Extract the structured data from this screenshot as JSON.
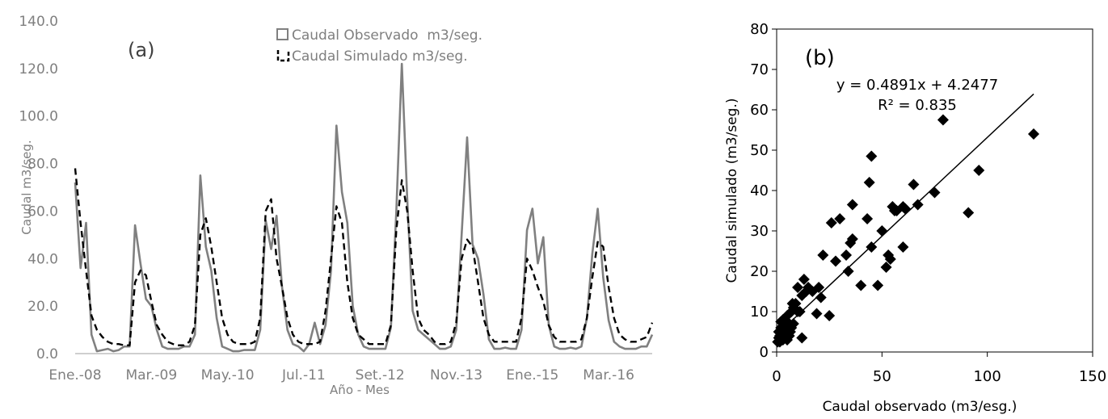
{
  "chart_data": [
    {
      "type": "line",
      "panel_label": "(a)",
      "xlabel": "Año - Mes",
      "ylabel": "Caudal m3/seg.",
      "ylim": [
        0,
        140
      ],
      "yticks": [
        "0.0",
        "20.0",
        "40.0",
        "60.0",
        "80.0",
        "100.0",
        "120.0",
        "140.0"
      ],
      "x_tick_labels": [
        "Ene.-08",
        "Mar.-09",
        "May.-10",
        "Jul.-11",
        "Set.-12",
        "Nov.-13",
        "Ene.-15",
        "Mar.-16"
      ],
      "x_tick_month_index": [
        0,
        14,
        28,
        42,
        56,
        70,
        84,
        98
      ],
      "n_months": 107,
      "grid": false,
      "legend_position": "top-center",
      "series": [
        {
          "name": "Caudal Observado  m3/seg.",
          "color": "#808080",
          "dash": "solid",
          "values": [
            72,
            36,
            55,
            8,
            1,
            1.5,
            2,
            1,
            1.5,
            3,
            3,
            54,
            38,
            23,
            20,
            10,
            3,
            2,
            2,
            2,
            3,
            3,
            8,
            75,
            45,
            35,
            15,
            3,
            2,
            1,
            1,
            1.5,
            1.5,
            1.5,
            10,
            56,
            44,
            58,
            28,
            10,
            4,
            3,
            1,
            4,
            13,
            4,
            12,
            35,
            96,
            68,
            55,
            20,
            8,
            3,
            2,
            2,
            2,
            2,
            11,
            60,
            122,
            65,
            18,
            10,
            8,
            6,
            4,
            2,
            2,
            3,
            10,
            50,
            91,
            46,
            40,
            25,
            6,
            2,
            2,
            2.5,
            2,
            2,
            10,
            52,
            61,
            38,
            49,
            12,
            3,
            2,
            2,
            2.5,
            2,
            3,
            15,
            42,
            61,
            32,
            14,
            5,
            3,
            2,
            2,
            2,
            3,
            3,
            8
          ]
        },
        {
          "name": "Caudal Simulado m3/seg.",
          "color": "#000000",
          "dash": "dashed",
          "values": [
            78,
            55,
            35,
            16,
            10,
            7,
            5,
            4,
            4,
            3.5,
            3.5,
            30,
            35,
            33,
            22,
            12,
            8,
            5,
            4,
            3.5,
            3.5,
            5,
            12,
            50,
            57,
            45,
            30,
            15,
            8,
            5,
            4,
            4,
            4,
            5,
            15,
            60,
            65,
            40,
            28,
            15,
            8,
            5,
            4,
            4,
            4,
            5,
            18,
            40,
            62,
            55,
            30,
            15,
            8,
            6,
            4,
            4,
            4,
            4,
            12,
            52,
            73,
            60,
            35,
            15,
            10,
            8,
            5,
            4,
            4,
            5,
            13,
            40,
            48,
            45,
            30,
            15,
            8,
            5,
            5,
            5,
            5,
            5,
            15,
            40,
            35,
            28,
            22,
            12,
            7,
            5,
            5,
            5,
            5,
            6,
            15,
            32,
            47,
            45,
            28,
            15,
            8,
            6,
            5,
            5,
            6,
            7,
            13
          ]
        }
      ]
    },
    {
      "type": "scatter",
      "panel_label": "(b)",
      "xlabel": "Caudal observado (m3/esg.)",
      "ylabel": "Caudal simulado (m3/seg.)",
      "xlim": [
        0,
        150
      ],
      "ylim": [
        0,
        80
      ],
      "xticks": [
        0,
        50,
        100,
        150
      ],
      "yticks": [
        0,
        10,
        20,
        30,
        40,
        50,
        60,
        70,
        80
      ],
      "grid": false,
      "marker": "diamond",
      "trendline": {
        "slope": 0.4891,
        "intercept": 4.2477,
        "x_range": [
          0,
          122
        ],
        "equation": "y = 0.4891x + 4.2477",
        "r2_label": "R² = 0.835"
      },
      "points": [
        [
          0.5,
          2.5
        ],
        [
          1,
          3.5
        ],
        [
          1,
          5
        ],
        [
          1.5,
          2.5
        ],
        [
          1.5,
          4
        ],
        [
          2,
          3
        ],
        [
          2,
          6
        ],
        [
          2,
          7.5
        ],
        [
          2.5,
          4
        ],
        [
          2.5,
          5
        ],
        [
          3,
          3
        ],
        [
          3,
          5
        ],
        [
          3,
          8
        ],
        [
          3.5,
          3.5
        ],
        [
          3.5,
          6
        ],
        [
          4,
          4
        ],
        [
          4,
          7
        ],
        [
          4.5,
          4.5
        ],
        [
          5,
          3
        ],
        [
          5,
          6
        ],
        [
          5,
          9
        ],
        [
          5.5,
          5
        ],
        [
          6,
          4
        ],
        [
          6,
          7
        ],
        [
          6.5,
          5
        ],
        [
          7,
          6
        ],
        [
          7,
          10
        ],
        [
          7.5,
          12
        ],
        [
          8,
          7
        ],
        [
          8,
          11
        ],
        [
          9,
          12
        ],
        [
          10,
          10
        ],
        [
          10,
          16
        ],
        [
          11,
          10
        ],
        [
          12,
          14
        ],
        [
          12,
          3.5
        ],
        [
          13,
          18
        ],
        [
          14,
          15
        ],
        [
          15,
          16
        ],
        [
          17,
          15
        ],
        [
          19,
          9.5
        ],
        [
          20,
          16
        ],
        [
          21,
          13.5
        ],
        [
          22,
          24
        ],
        [
          25,
          9
        ],
        [
          26,
          32
        ],
        [
          28,
          22.5
        ],
        [
          30,
          33
        ],
        [
          33,
          24
        ],
        [
          34,
          20
        ],
        [
          35,
          27
        ],
        [
          36,
          28
        ],
        [
          36,
          36.5
        ],
        [
          40,
          16.5
        ],
        [
          43,
          33
        ],
        [
          44,
          42
        ],
        [
          45,
          48.5
        ],
        [
          45,
          26
        ],
        [
          48,
          16.5
        ],
        [
          50,
          30
        ],
        [
          52,
          21
        ],
        [
          53,
          24
        ],
        [
          54,
          23
        ],
        [
          55,
          36
        ],
        [
          56,
          35
        ],
        [
          57,
          35
        ],
        [
          60,
          36
        ],
        [
          60,
          26
        ],
        [
          61,
          35.5
        ],
        [
          65,
          41.5
        ],
        [
          67,
          36.5
        ],
        [
          75,
          39.5
        ],
        [
          79,
          57.5
        ],
        [
          91,
          34.5
        ],
        [
          96,
          45
        ],
        [
          122,
          54
        ]
      ]
    }
  ]
}
